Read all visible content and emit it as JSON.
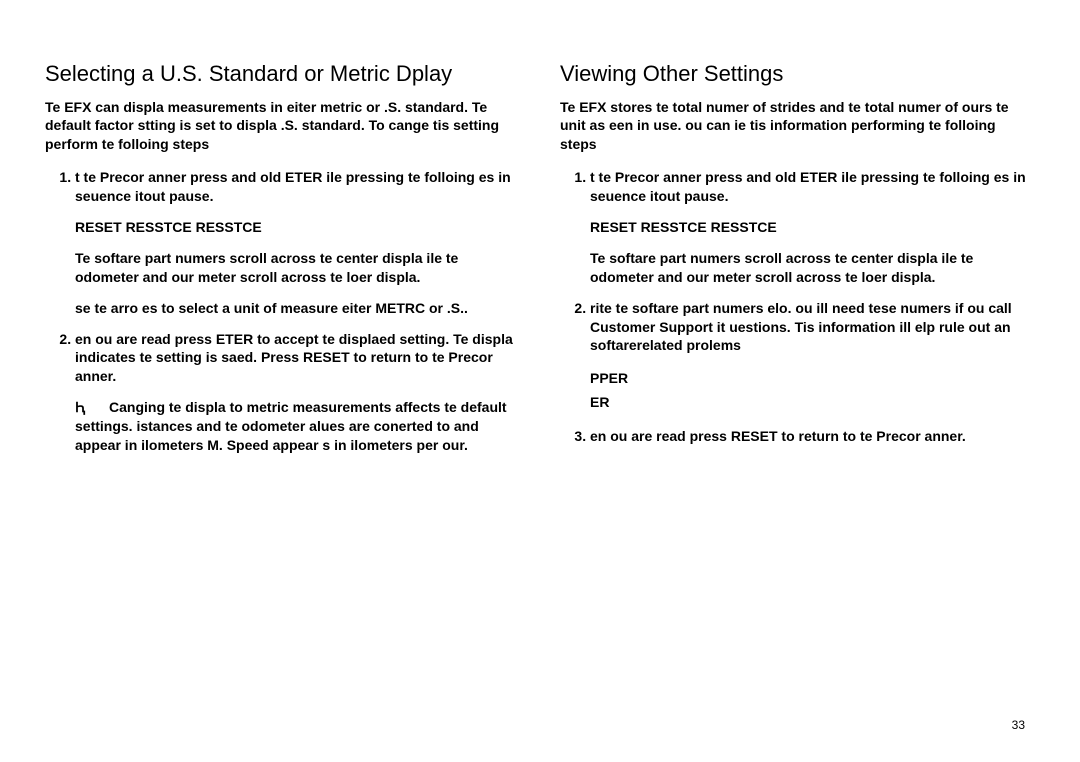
{
  "page_number": "33",
  "left": {
    "heading": "Selecting a U.S. Standard or Metric Dplay",
    "intro": "Te EFX can displa measurements in eiter metric or .S. standard. Te default factor stting is set to displa .S. standard. To cange tis setting perform te folloing steps",
    "step1": "t te Precor anner press and old ETER ile pressing te folloing es in seuence itout pause.",
    "keys": "RESET RESSTCE         RESSTCE",
    "after1a": "Te softare part numers   scroll across te center displa ile te odometer and our meter scroll across te loer displa.",
    "after1b": "se te arro es to select a unit of measure eiter METRC or .S..",
    "step2": "en ou are read press ETER to accept te displaed setting. Te displa indicates te setting is saed. Press RESET to return to te Precor anner.",
    "note_label": "Ԧ",
    "note_body": "Canging te displa to metric measurements affects te default settings. istances and te odometer alues are conerted to and appear in ilometers M. Speed appear s in ilometers per our."
  },
  "right": {
    "heading": "Viewing Other Settings",
    "intro": "Te EFX stores te total numer of strides and te total numer of ours te unit as een in use. ou can ie tis information  performing te folloing steps",
    "step1": "t te Precor anner press and old ETER ile pressing te folloing es in seuence itout pause.",
    "keys": "RESET RESSTCE         RESSTCE",
    "after1": "Te softare part numers   scroll across te center displa ile te odometer and our meter scroll across te loer displa.",
    "step2": "rite te softare part numers elo. ou ill need tese numers if ou call Customer Support it uestions. Tis information ill elp rule out an softarerelated prolems",
    "field1": "PPER",
    "field2": "ER",
    "step3": "en ou are read press RESET to return to te Precor anner."
  }
}
